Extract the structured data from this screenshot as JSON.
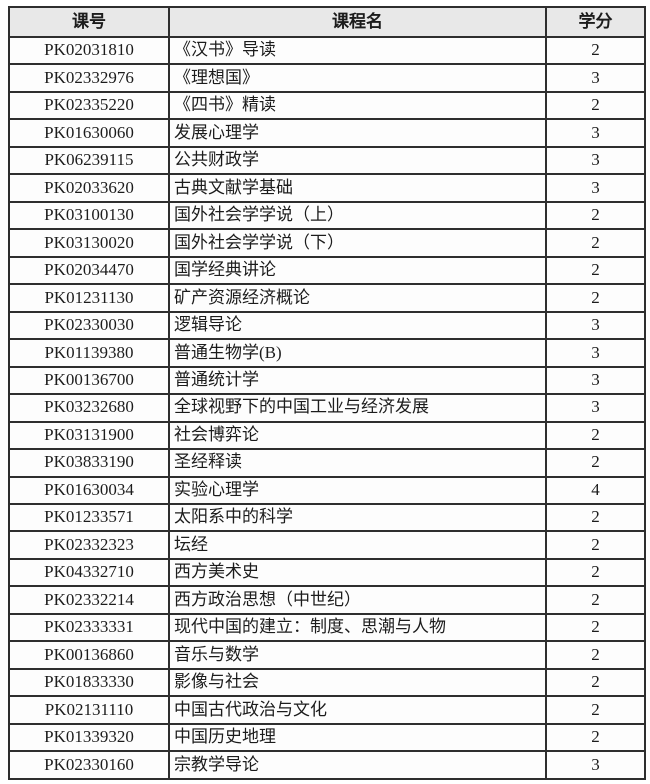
{
  "colors": {
    "border": "#2e2e2e",
    "header_bg": "#e8e8e8",
    "row_bg": "#fdfdfd",
    "text": "#1c1c1c",
    "page_bg": "#ffffff"
  },
  "table": {
    "headers": [
      "课号",
      "课程名",
      "学分"
    ],
    "rows": [
      [
        "PK02031810",
        "《汉书》导读",
        "2"
      ],
      [
        "PK02332976",
        "《理想国》",
        "3"
      ],
      [
        "PK02335220",
        "《四书》精读",
        "2"
      ],
      [
        "PK01630060",
        "发展心理学",
        "3"
      ],
      [
        "PK06239115",
        "公共财政学",
        "3"
      ],
      [
        "PK02033620",
        "古典文献学基础",
        "3"
      ],
      [
        "PK03100130",
        "国外社会学学说（上）",
        "2"
      ],
      [
        "PK03130020",
        "国外社会学学说（下）",
        "2"
      ],
      [
        "PK02034470",
        "国学经典讲论",
        "2"
      ],
      [
        "PK01231130",
        "矿产资源经济概论",
        "2"
      ],
      [
        "PK02330030",
        "逻辑导论",
        "3"
      ],
      [
        "PK01139380",
        "普通生物学(B)",
        "3"
      ],
      [
        "PK00136700",
        "普通统计学",
        "3"
      ],
      [
        "PK03232680",
        "全球视野下的中国工业与经济发展",
        "3"
      ],
      [
        "PK03131900",
        "社会博弈论",
        "2"
      ],
      [
        "PK03833190",
        "圣经释读",
        "2"
      ],
      [
        "PK01630034",
        "实验心理学",
        "4"
      ],
      [
        "PK01233571",
        "太阳系中的科学",
        "2"
      ],
      [
        "PK02332323",
        "坛经",
        "2"
      ],
      [
        "PK04332710",
        "西方美术史",
        "2"
      ],
      [
        "PK02332214",
        "西方政治思想（中世纪）",
        "2"
      ],
      [
        "PK02333331",
        "现代中国的建立：制度、思潮与人物",
        "2"
      ],
      [
        "PK00136860",
        "音乐与数学",
        "2"
      ],
      [
        "PK01833330",
        "影像与社会",
        "2"
      ],
      [
        "PK02131110",
        "中国古代政治与文化",
        "2"
      ],
      [
        "PK01339320",
        "中国历史地理",
        "2"
      ],
      [
        "PK02330160",
        "宗教学导论",
        "3"
      ]
    ]
  }
}
